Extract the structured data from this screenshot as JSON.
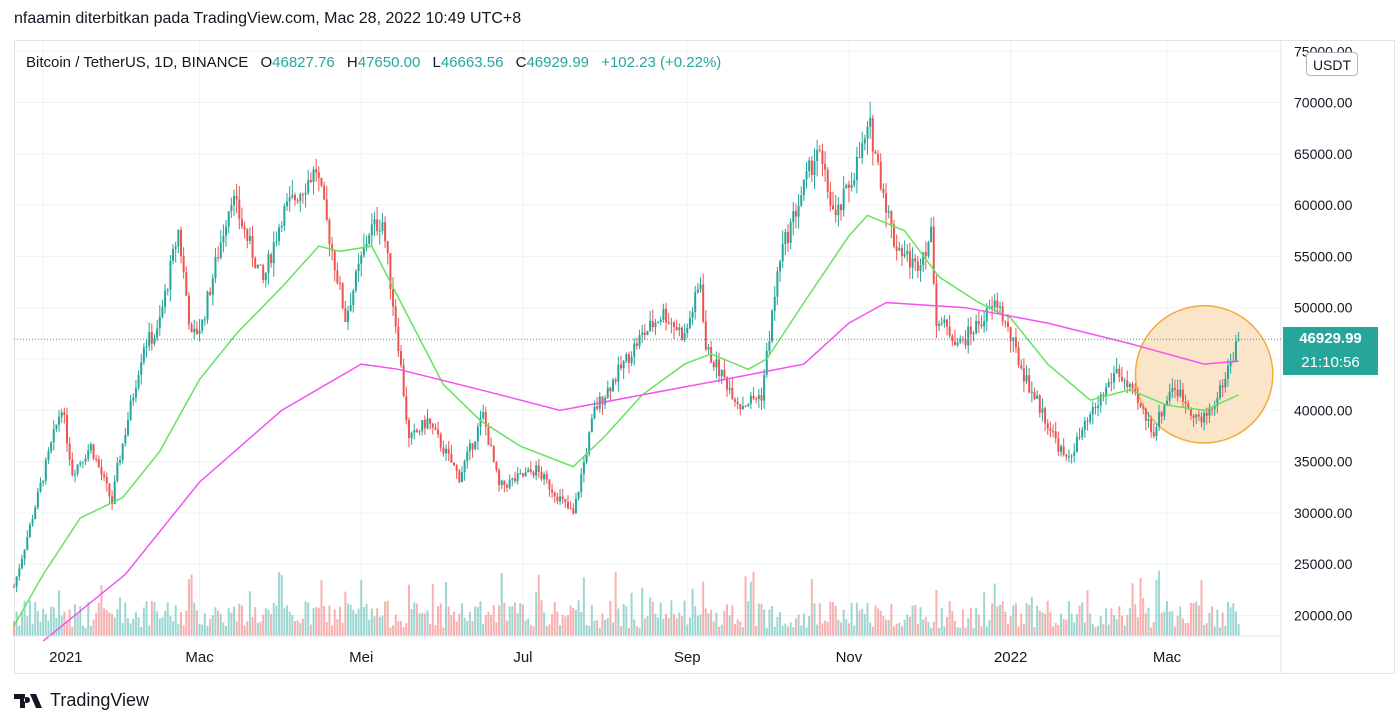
{
  "header": {
    "caption": "nfaamin diterbitkan pada TradingView.com, Mac 28, 2022 10:49 UTC+8"
  },
  "legend": {
    "symbol": "Bitcoin / TetherUS, 1D, BINANCE",
    "open_label": "O",
    "open": "46827.76",
    "high_label": "H",
    "high": "47650.00",
    "low_label": "L",
    "low": "46663.56",
    "close_label": "C",
    "close": "46929.99",
    "change": "+102.23 (+0.22%)"
  },
  "axis": {
    "unit": "USDT",
    "price_ticks": [
      "75000.00",
      "70000.00",
      "65000.00",
      "60000.00",
      "55000.00",
      "50000.00",
      "45000.00",
      "40000.00",
      "35000.00",
      "30000.00",
      "25000.00",
      "20000.00"
    ],
    "time_ticks": [
      "2021",
      "Mac",
      "Mei",
      "Jul",
      "Sep",
      "Nov",
      "2022",
      "Mac"
    ]
  },
  "price_tag": {
    "price": "46929.99",
    "timer": "21:10:56"
  },
  "footer": {
    "brand": "TradingView"
  },
  "colors": {
    "up": "#26a69a",
    "down": "#ef5350",
    "ma_fast": "#66e35f",
    "ma_slow": "#f452f0",
    "highlight_fill": "#fbe3c4",
    "highlight_stroke": "#f0a22b",
    "grid": "#f0f3fa",
    "text": "#131722"
  },
  "chart_data": {
    "type": "candlestick",
    "title": "Bitcoin / TetherUS, 1D, BINANCE",
    "ylim": [
      18000,
      76000
    ],
    "grid": true,
    "x_ticks": [
      {
        "label": "2021",
        "date": "2021-01-01"
      },
      {
        "label": "Mac",
        "date": "2021-03-01"
      },
      {
        "label": "Mei",
        "date": "2021-05-01"
      },
      {
        "label": "Jul",
        "date": "2021-07-01"
      },
      {
        "label": "Sep",
        "date": "2021-09-01"
      },
      {
        "label": "Nov",
        "date": "2021-11-01"
      },
      {
        "label": "2022",
        "date": "2022-01-01"
      },
      {
        "label": "Mac",
        "date": "2022-03-01"
      }
    ],
    "price_path": [
      [
        "2020-12-21",
        22800
      ],
      [
        "2021-01-08",
        40500
      ],
      [
        "2021-01-12",
        34000
      ],
      [
        "2021-01-19",
        36500
      ],
      [
        "2021-01-27",
        31000
      ],
      [
        "2021-01-29",
        34300
      ],
      [
        "2021-02-08",
        46500
      ],
      [
        "2021-02-13",
        47500
      ],
      [
        "2021-02-21",
        57500
      ],
      [
        "2021-02-26",
        47000
      ],
      [
        "2021-03-02",
        48500
      ],
      [
        "2021-03-13",
        61000
      ],
      [
        "2021-03-25",
        52500
      ],
      [
        "2021-04-01",
        59000
      ],
      [
        "2021-04-14",
        63500
      ],
      [
        "2021-04-25",
        49000
      ],
      [
        "2021-05-04",
        57500
      ],
      [
        "2021-05-09",
        58500
      ],
      [
        "2021-05-15",
        46500
      ],
      [
        "2021-05-19",
        37000
      ],
      [
        "2021-05-26",
        39000
      ],
      [
        "2021-06-07",
        33500
      ],
      [
        "2021-06-16",
        39500
      ],
      [
        "2021-06-22",
        32500
      ],
      [
        "2021-07-06",
        34200
      ],
      [
        "2021-07-20",
        29800
      ],
      [
        "2021-07-28",
        40000
      ],
      [
        "2021-08-14",
        47000
      ],
      [
        "2021-08-23",
        49500
      ],
      [
        "2021-08-31",
        47200
      ],
      [
        "2021-09-06",
        52500
      ],
      [
        "2021-09-08",
        46000
      ],
      [
        "2021-09-21",
        40500
      ],
      [
        "2021-09-29",
        41500
      ],
      [
        "2021-10-06",
        55000
      ],
      [
        "2021-10-20",
        65500
      ],
      [
        "2021-10-27",
        58500
      ],
      [
        "2021-11-09",
        67500
      ],
      [
        "2021-11-18",
        56500
      ],
      [
        "2021-11-26",
        54000
      ],
      [
        "2021-12-02",
        57000
      ],
      [
        "2021-12-04",
        49000
      ],
      [
        "2021-12-13",
        46500
      ],
      [
        "2021-12-27",
        50500
      ],
      [
        "2022-01-06",
        43500
      ],
      [
        "2022-01-22",
        35000
      ],
      [
        "2022-02-10",
        44000
      ],
      [
        "2022-02-24",
        38000
      ],
      [
        "2022-03-03",
        42500
      ],
      [
        "2022-03-14",
        38800
      ],
      [
        "2022-03-20",
        41200
      ],
      [
        "2022-03-28",
        46929.99
      ]
    ],
    "last_candle": {
      "date": "2022-03-28",
      "open": 46827.76,
      "high": 47650.0,
      "low": 46663.56,
      "close": 46929.99
    },
    "moving_averages": [
      {
        "color": "#66e35f",
        "points": [
          [
            "2020-12-21",
            19000
          ],
          [
            "2021-01-01",
            24000
          ],
          [
            "2021-01-15",
            29500
          ],
          [
            "2021-01-31",
            31500
          ],
          [
            "2021-02-14",
            36000
          ],
          [
            "2021-03-01",
            43000
          ],
          [
            "2021-03-15",
            47500
          ],
          [
            "2021-04-01",
            52000
          ],
          [
            "2021-04-15",
            56000
          ],
          [
            "2021-04-23",
            55500
          ],
          [
            "2021-05-05",
            56000
          ],
          [
            "2021-05-15",
            51000
          ],
          [
            "2021-06-01",
            42500
          ],
          [
            "2021-06-15",
            39000
          ],
          [
            "2021-06-30",
            36500
          ],
          [
            "2021-07-20",
            34500
          ],
          [
            "2021-08-01",
            37500
          ],
          [
            "2021-08-15",
            41500
          ],
          [
            "2021-08-31",
            44500
          ],
          [
            "2021-09-10",
            45500
          ],
          [
            "2021-09-24",
            44000
          ],
          [
            "2021-10-01",
            45000
          ],
          [
            "2021-10-15",
            50500
          ],
          [
            "2021-11-01",
            57000
          ],
          [
            "2021-11-08",
            59000
          ],
          [
            "2021-11-22",
            57500
          ],
          [
            "2021-12-05",
            53000
          ],
          [
            "2021-12-20",
            50500
          ],
          [
            "2022-01-01",
            49000
          ],
          [
            "2022-01-15",
            44500
          ],
          [
            "2022-01-31",
            41000
          ],
          [
            "2022-02-15",
            42000
          ],
          [
            "2022-03-01",
            40500
          ],
          [
            "2022-03-15",
            40000
          ],
          [
            "2022-03-28",
            41500
          ]
        ]
      },
      {
        "color": "#f452f0",
        "points": [
          [
            "2021-01-01",
            17500
          ],
          [
            "2021-02-01",
            24000
          ],
          [
            "2021-03-01",
            33000
          ],
          [
            "2021-04-01",
            40000
          ],
          [
            "2021-05-01",
            44500
          ],
          [
            "2021-05-15",
            44000
          ],
          [
            "2021-06-15",
            42000
          ],
          [
            "2021-07-15",
            40000
          ],
          [
            "2021-08-15",
            41500
          ],
          [
            "2021-09-15",
            43000
          ],
          [
            "2021-10-15",
            44500
          ],
          [
            "2021-11-01",
            48500
          ],
          [
            "2021-11-15",
            50500
          ],
          [
            "2021-12-15",
            50000
          ],
          [
            "2022-01-15",
            48500
          ],
          [
            "2022-02-15",
            46500
          ],
          [
            "2022-03-15",
            44500
          ],
          [
            "2022-03-28",
            44800
          ]
        ]
      }
    ],
    "annotations": [
      {
        "type": "circle",
        "center": [
          "2022-03-15",
          43500
        ],
        "radius_days": 14,
        "color": "#f0a22b"
      }
    ]
  }
}
